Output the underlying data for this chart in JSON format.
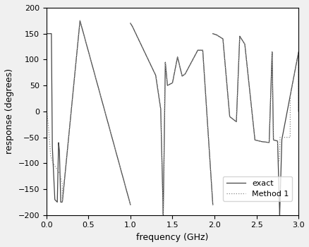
{
  "title": "",
  "xlabel": "frequency (GHz)",
  "ylabel": "response (degrees)",
  "xlim": [
    0,
    3
  ],
  "ylim": [
    -200,
    200
  ],
  "xticks": [
    0,
    0.5,
    1.0,
    1.5,
    2.0,
    2.5,
    3.0
  ],
  "yticks": [
    -200,
    -150,
    -100,
    -50,
    0,
    50,
    100,
    150,
    200
  ],
  "exact_color": "#444444",
  "method1_color": "#888888",
  "bg_color": "#ffffff",
  "legend_labels": [
    "exact",
    "Method 1"
  ],
  "figsize": [
    4.39,
    3.5
  ],
  "dpi": 100
}
